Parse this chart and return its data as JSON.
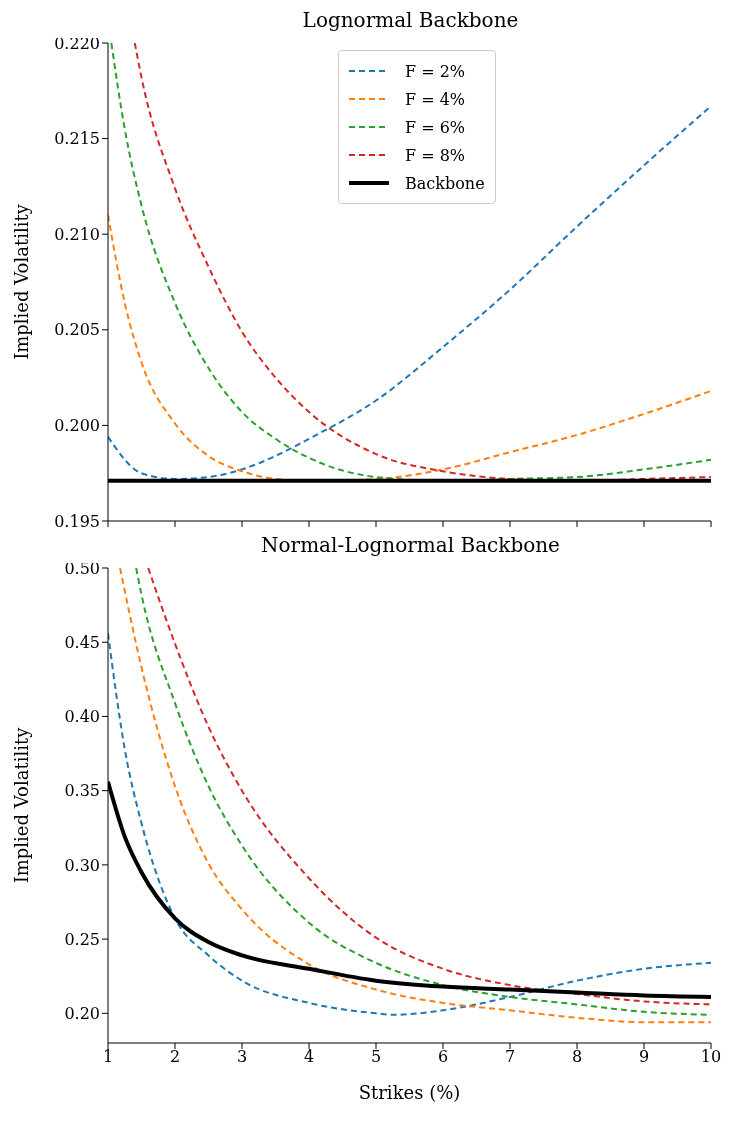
{
  "chart_data": [
    {
      "type": "line",
      "title": "Lognormal Backbone",
      "ylabel": "Implied Volatility",
      "xlim": [
        1,
        10
      ],
      "xticks": [
        1,
        2,
        3,
        4,
        5,
        6,
        7,
        8,
        9,
        10
      ],
      "ylim": [
        0.195,
        0.22
      ],
      "yticks": [
        {
          "value": 0.195,
          "label": "0.195"
        },
        {
          "value": 0.2,
          "label": "0.200"
        },
        {
          "value": 0.205,
          "label": "0.205"
        },
        {
          "value": 0.21,
          "label": "0.210"
        },
        {
          "value": 0.215,
          "label": "0.215"
        },
        {
          "value": 0.22,
          "label": "0.220"
        }
      ],
      "tick_labels": "y",
      "legend": "top",
      "marker": "none",
      "series": [
        {
          "name": "F = 2%",
          "color": "#1f77b4",
          "line_style": "dashed",
          "x": [
            1,
            1.5,
            2,
            2.5,
            3,
            3.5,
            4,
            5,
            6,
            7,
            8,
            9,
            10
          ],
          "values": [
            0.1994,
            0.1975,
            0.1972,
            0.1973,
            0.1977,
            0.1984,
            0.1993,
            0.2013,
            0.2041,
            0.2071,
            0.2104,
            0.2136,
            0.2167
          ]
        },
        {
          "name": "F = 4%",
          "color": "#ff7f0e",
          "line_style": "dashed",
          "x": [
            1,
            1.25,
            1.5,
            2,
            2.5,
            3,
            3.5,
            4,
            5,
            6,
            7,
            8,
            9,
            10
          ],
          "values": [
            0.211,
            0.2064,
            0.2033,
            0.2001,
            0.1984,
            0.1976,
            0.1972,
            0.1971,
            0.1972,
            0.1977,
            0.1986,
            0.1995,
            0.2006,
            0.2018
          ]
        },
        {
          "name": "F = 6%",
          "color": "#2ca02c",
          "line_style": "dashed",
          "x": [
            1.05,
            1.25,
            1.5,
            2,
            2.5,
            3,
            3.5,
            4,
            5,
            6,
            7,
            8,
            9,
            10
          ],
          "values": [
            0.22,
            0.2155,
            0.2115,
            0.2064,
            0.203,
            0.2007,
            0.1993,
            0.1983,
            0.1973,
            0.1971,
            0.1972,
            0.1973,
            0.1977,
            0.1982
          ]
        },
        {
          "name": "F = 8%",
          "color": "#d62728",
          "line_style": "dashed",
          "x": [
            1.4,
            1.5,
            2,
            2.5,
            3,
            3.5,
            4,
            5,
            6,
            7,
            8,
            9,
            10
          ],
          "values": [
            0.22,
            0.2182,
            0.2124,
            0.2083,
            0.2049,
            0.2025,
            0.2007,
            0.1985,
            0.1976,
            0.1972,
            0.1971,
            0.1972,
            0.1973
          ]
        },
        {
          "name": "Backbone",
          "color": "#000000",
          "line_style": "solid",
          "x": [
            1,
            10
          ],
          "values": [
            0.1971,
            0.1971
          ]
        }
      ]
    },
    {
      "type": "line",
      "title": "Normal-Lognormal Backbone",
      "xlabel": "Strikes (%)",
      "ylabel": "Implied Volatility",
      "xlim": [
        1,
        10
      ],
      "xticks": [
        1,
        2,
        3,
        4,
        5,
        6,
        7,
        8,
        9,
        10
      ],
      "ylim": [
        0.18,
        0.5
      ],
      "yticks": [
        {
          "value": 0.2,
          "label": "0.20"
        },
        {
          "value": 0.25,
          "label": "0.25"
        },
        {
          "value": 0.3,
          "label": "0.30"
        },
        {
          "value": 0.35,
          "label": "0.35"
        },
        {
          "value": 0.4,
          "label": "0.40"
        },
        {
          "value": 0.45,
          "label": "0.45"
        },
        {
          "value": 0.5,
          "label": "0.50"
        }
      ],
      "legend": false,
      "marker": "none",
      "series": [
        {
          "color": "#1f77b4",
          "line_style": "dashed",
          "x": [
            1,
            1.25,
            1.5,
            2,
            2.5,
            3,
            4,
            5,
            5.25,
            6,
            7,
            8,
            9,
            10
          ],
          "values": [
            0.456,
            0.378,
            0.328,
            0.264,
            0.239,
            0.222,
            0.207,
            0.2,
            0.199,
            0.202,
            0.211,
            0.222,
            0.23,
            0.234
          ]
        },
        {
          "color": "#ff7f0e",
          "line_style": "dashed",
          "x": [
            1.18,
            1.5,
            2,
            2.5,
            3,
            4,
            5,
            6,
            7,
            8,
            9,
            10
          ],
          "values": [
            0.5,
            0.433,
            0.353,
            0.301,
            0.27,
            0.233,
            0.216,
            0.207,
            0.202,
            0.197,
            0.194,
            0.194
          ]
        },
        {
          "color": "#2ca02c",
          "line_style": "dashed",
          "x": [
            1.42,
            1.5,
            2,
            2.5,
            3,
            4,
            5,
            6,
            7,
            8,
            9,
            10
          ],
          "values": [
            0.5,
            0.482,
            0.409,
            0.353,
            0.313,
            0.261,
            0.234,
            0.219,
            0.211,
            0.206,
            0.201,
            0.199
          ]
        },
        {
          "color": "#d62728",
          "line_style": "dashed",
          "x": [
            1.6,
            2,
            2.5,
            3,
            4,
            5,
            6,
            7,
            8,
            9,
            10
          ],
          "values": [
            0.5,
            0.449,
            0.393,
            0.35,
            0.291,
            0.251,
            0.23,
            0.219,
            0.213,
            0.208,
            0.206
          ]
        },
        {
          "color": "#000000",
          "line_style": "solid",
          "x": [
            1,
            1.25,
            1.5,
            2,
            2.5,
            3,
            4,
            5,
            6,
            7,
            8,
            9,
            10
          ],
          "values": [
            0.356,
            0.319,
            0.295,
            0.264,
            0.248,
            0.239,
            0.23,
            0.222,
            0.218,
            0.216,
            0.214,
            0.212,
            0.211
          ]
        }
      ]
    }
  ]
}
